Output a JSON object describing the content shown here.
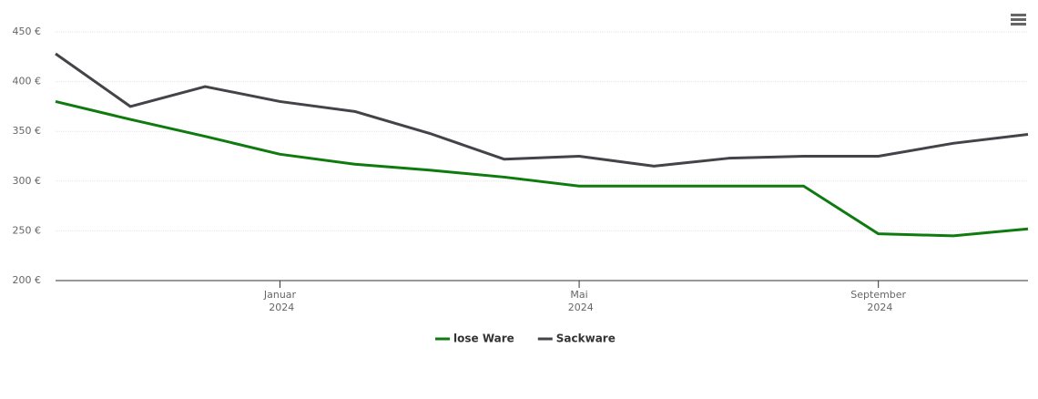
{
  "chart_data": {
    "type": "line",
    "x": [
      "2023-10",
      "2023-11",
      "2023-12",
      "2024-01",
      "2024-02",
      "2024-03",
      "2024-04",
      "2024-05",
      "2024-06",
      "2024-07",
      "2024-08",
      "2024-09",
      "2024-10",
      "2024-11"
    ],
    "series": [
      {
        "name": "lose Ware",
        "color": "#0f7b0f",
        "values": [
          380,
          362,
          345,
          327,
          317,
          311,
          304,
          295,
          295,
          295,
          295,
          247,
          245,
          252
        ]
      },
      {
        "name": "Sackware",
        "color": "#434348",
        "values": [
          428,
          375,
          395,
          380,
          370,
          348,
          322,
          325,
          315,
          323,
          325,
          325,
          338,
          347
        ]
      }
    ],
    "xlim": [
      "2023-10",
      "2024-11"
    ],
    "xticks": [
      {
        "value": "2024-01",
        "label": "Januar 2024"
      },
      {
        "value": "2024-05",
        "label": "Mai 2024"
      },
      {
        "value": "2024-09",
        "label": "September 2024"
      }
    ],
    "ylim": [
      200,
      450
    ],
    "yticks": [
      {
        "value": 200,
        "label": "200 €"
      },
      {
        "value": 250,
        "label": "250 €"
      },
      {
        "value": 300,
        "label": "300 €"
      },
      {
        "value": 350,
        "label": "350 €"
      },
      {
        "value": 400,
        "label": "400 €"
      },
      {
        "value": 450,
        "label": "450 €"
      }
    ],
    "grid": true
  }
}
